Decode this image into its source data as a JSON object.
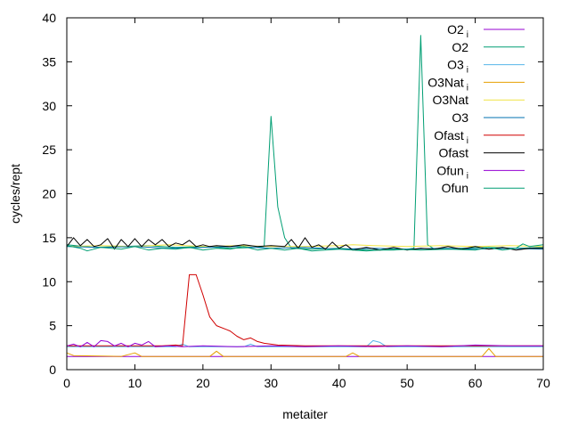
{
  "chart_data": {
    "type": "line",
    "xlabel": "metaiter",
    "ylabel": "cycles/rept",
    "xlim": [
      0,
      70
    ],
    "ylim": [
      0,
      40
    ],
    "xticks": [
      0,
      10,
      20,
      30,
      40,
      50,
      60,
      70
    ],
    "yticks": [
      0,
      5,
      10,
      15,
      20,
      25,
      30,
      35,
      40
    ],
    "grid": false,
    "legend_position": "top-right",
    "series": [
      {
        "name": "O2 i",
        "label_main": "O2",
        "label_sub": "i",
        "color": "#9400d3",
        "points": [
          [
            0,
            1.5
          ],
          [
            70,
            1.5
          ]
        ]
      },
      {
        "name": "O2",
        "label_main": "O2",
        "label_sub": "",
        "color": "#009e73",
        "points": [
          [
            0,
            14.2
          ],
          [
            4,
            13.9
          ],
          [
            8,
            14.0
          ],
          [
            12,
            14.1
          ],
          [
            16,
            13.9
          ],
          [
            20,
            14.0
          ],
          [
            24,
            13.8
          ],
          [
            28,
            13.9
          ],
          [
            29,
            14.0
          ],
          [
            30,
            28.8
          ],
          [
            31,
            18.5
          ],
          [
            32,
            15.0
          ],
          [
            33,
            13.8
          ],
          [
            36,
            13.7
          ],
          [
            40,
            13.8
          ],
          [
            44,
            13.6
          ],
          [
            48,
            13.6
          ],
          [
            50,
            13.7
          ],
          [
            51,
            13.8
          ],
          [
            52,
            38.0
          ],
          [
            53,
            14.2
          ],
          [
            54,
            13.7
          ],
          [
            58,
            13.8
          ],
          [
            62,
            13.9
          ],
          [
            66,
            13.8
          ],
          [
            70,
            13.9
          ]
        ]
      },
      {
        "name": "O3 i",
        "label_main": "O3",
        "label_sub": "i",
        "color": "#56b4e9",
        "points": [
          [
            0,
            2.6
          ],
          [
            16,
            2.6
          ],
          [
            17,
            2.9
          ],
          [
            18,
            2.6
          ],
          [
            26,
            2.6
          ],
          [
            27,
            2.9
          ],
          [
            28,
            2.6
          ],
          [
            44,
            2.6
          ],
          [
            45,
            3.3
          ],
          [
            46,
            3.1
          ],
          [
            47,
            2.6
          ],
          [
            70,
            2.6
          ]
        ]
      },
      {
        "name": "O3Nat i",
        "label_main": "O3Nat",
        "label_sub": "i",
        "color": "#e69f00",
        "points": [
          [
            0,
            1.9
          ],
          [
            1,
            1.6
          ],
          [
            8,
            1.5
          ],
          [
            10,
            1.9
          ],
          [
            11,
            1.5
          ],
          [
            21,
            1.5
          ],
          [
            22,
            2.1
          ],
          [
            23,
            1.5
          ],
          [
            41,
            1.5
          ],
          [
            42,
            1.9
          ],
          [
            43,
            1.5
          ],
          [
            61,
            1.5
          ],
          [
            62,
            2.4
          ],
          [
            63,
            1.5
          ],
          [
            70,
            1.5
          ]
        ]
      },
      {
        "name": "O3Nat",
        "label_main": "O3Nat",
        "label_sub": "",
        "color": "#f0e442",
        "points": [
          [
            0,
            14.0
          ],
          [
            5,
            14.1
          ],
          [
            10,
            14.0
          ],
          [
            15,
            14.2
          ],
          [
            20,
            14.0
          ],
          [
            25,
            14.1
          ],
          [
            30,
            14.0
          ],
          [
            35,
            14.0
          ],
          [
            40,
            14.1
          ],
          [
            42,
            14.2
          ],
          [
            45,
            14.1
          ],
          [
            50,
            14.0
          ],
          [
            55,
            14.1
          ],
          [
            60,
            14.0
          ],
          [
            65,
            14.1
          ],
          [
            70,
            14.0
          ]
        ]
      },
      {
        "name": "O3",
        "label_main": "O3",
        "label_sub": "",
        "color": "#0072b2",
        "points": [
          [
            0,
            14.0
          ],
          [
            5,
            13.9
          ],
          [
            10,
            14.0
          ],
          [
            15,
            13.8
          ],
          [
            20,
            13.9
          ],
          [
            25,
            14.0
          ],
          [
            30,
            13.8
          ],
          [
            35,
            13.9
          ],
          [
            40,
            13.7
          ],
          [
            45,
            13.8
          ],
          [
            50,
            13.7
          ],
          [
            55,
            13.8
          ],
          [
            60,
            13.7
          ],
          [
            65,
            13.8
          ],
          [
            70,
            13.7
          ]
        ]
      },
      {
        "name": "Ofast i",
        "label_main": "Ofast",
        "label_sub": "i",
        "color": "#d00000",
        "points": [
          [
            0,
            2.7
          ],
          [
            14,
            2.7
          ],
          [
            16,
            2.8
          ],
          [
            17,
            2.7
          ],
          [
            18,
            10.8
          ],
          [
            19,
            10.8
          ],
          [
            20,
            8.5
          ],
          [
            21,
            6.0
          ],
          [
            22,
            5.0
          ],
          [
            24,
            4.4
          ],
          [
            25,
            3.8
          ],
          [
            26,
            3.4
          ],
          [
            27,
            3.6
          ],
          [
            28,
            3.2
          ],
          [
            29,
            3.0
          ],
          [
            31,
            2.8
          ],
          [
            35,
            2.7
          ],
          [
            70,
            2.7
          ]
        ]
      },
      {
        "name": "Ofast",
        "label_main": "Ofast",
        "label_sub": "",
        "color": "#000000",
        "points": [
          [
            0,
            14.0
          ],
          [
            1,
            15.0
          ],
          [
            2,
            14.1
          ],
          [
            3,
            14.8
          ],
          [
            4,
            14.0
          ],
          [
            5,
            14.2
          ],
          [
            6,
            14.9
          ],
          [
            7,
            13.7
          ],
          [
            8,
            14.8
          ],
          [
            9,
            14.0
          ],
          [
            10,
            14.9
          ],
          [
            11,
            14.0
          ],
          [
            12,
            14.8
          ],
          [
            13,
            14.2
          ],
          [
            14,
            14.8
          ],
          [
            15,
            14.0
          ],
          [
            16,
            14.4
          ],
          [
            17,
            14.2
          ],
          [
            18,
            14.7
          ],
          [
            19,
            14.0
          ],
          [
            20,
            14.2
          ],
          [
            21,
            14.0
          ],
          [
            22,
            14.1
          ],
          [
            24,
            14.0
          ],
          [
            26,
            14.2
          ],
          [
            28,
            14.0
          ],
          [
            30,
            14.1
          ],
          [
            32,
            14.0
          ],
          [
            33,
            14.8
          ],
          [
            34,
            13.8
          ],
          [
            35,
            15.0
          ],
          [
            36,
            13.9
          ],
          [
            37,
            14.2
          ],
          [
            38,
            13.7
          ],
          [
            39,
            14.5
          ],
          [
            40,
            13.8
          ],
          [
            41,
            14.2
          ],
          [
            42,
            13.6
          ],
          [
            44,
            13.9
          ],
          [
            46,
            13.6
          ],
          [
            48,
            13.9
          ],
          [
            50,
            13.6
          ],
          [
            52,
            13.8
          ],
          [
            54,
            13.7
          ],
          [
            56,
            14.0
          ],
          [
            58,
            13.7
          ],
          [
            60,
            14.0
          ],
          [
            62,
            13.7
          ],
          [
            64,
            13.9
          ],
          [
            66,
            13.6
          ],
          [
            68,
            13.8
          ],
          [
            70,
            13.8
          ]
        ]
      },
      {
        "name": "Ofun i",
        "label_main": "Ofun",
        "label_sub": "i",
        "color": "#9400d3",
        "points": [
          [
            0,
            2.7
          ],
          [
            1,
            2.9
          ],
          [
            2,
            2.6
          ],
          [
            3,
            3.1
          ],
          [
            4,
            2.6
          ],
          [
            5,
            3.3
          ],
          [
            6,
            3.2
          ],
          [
            7,
            2.7
          ],
          [
            8,
            3.0
          ],
          [
            9,
            2.6
          ],
          [
            10,
            3.0
          ],
          [
            11,
            2.8
          ],
          [
            12,
            3.2
          ],
          [
            13,
            2.6
          ],
          [
            15,
            2.7
          ],
          [
            17,
            2.6
          ],
          [
            20,
            2.7
          ],
          [
            25,
            2.6
          ],
          [
            30,
            2.7
          ],
          [
            35,
            2.6
          ],
          [
            40,
            2.7
          ],
          [
            45,
            2.6
          ],
          [
            50,
            2.7
          ],
          [
            55,
            2.6
          ],
          [
            60,
            2.8
          ],
          [
            65,
            2.7
          ],
          [
            70,
            2.7
          ]
        ]
      },
      {
        "name": "Ofun",
        "label_main": "Ofun",
        "label_sub": "",
        "color": "#009e73",
        "points": [
          [
            0,
            14.1
          ],
          [
            2,
            13.8
          ],
          [
            3,
            13.5
          ],
          [
            5,
            13.9
          ],
          [
            8,
            13.7
          ],
          [
            10,
            14.0
          ],
          [
            12,
            13.6
          ],
          [
            14,
            13.8
          ],
          [
            16,
            13.7
          ],
          [
            18,
            13.9
          ],
          [
            20,
            13.6
          ],
          [
            22,
            13.8
          ],
          [
            24,
            13.7
          ],
          [
            26,
            14.0
          ],
          [
            28,
            13.6
          ],
          [
            30,
            13.8
          ],
          [
            32,
            13.6
          ],
          [
            34,
            13.8
          ],
          [
            36,
            13.5
          ],
          [
            40,
            13.7
          ],
          [
            44,
            13.5
          ],
          [
            48,
            13.7
          ],
          [
            52,
            13.6
          ],
          [
            56,
            13.7
          ],
          [
            60,
            13.6
          ],
          [
            62,
            13.9
          ],
          [
            64,
            13.6
          ],
          [
            66,
            13.8
          ],
          [
            67,
            14.3
          ],
          [
            68,
            14.0
          ],
          [
            70,
            14.2
          ]
        ]
      }
    ]
  }
}
